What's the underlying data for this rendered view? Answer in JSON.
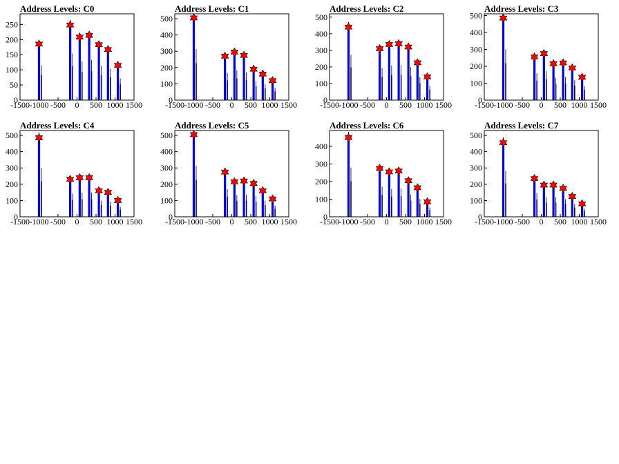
{
  "chart_data": [
    {
      "type": "histogram",
      "title": "Address Levels: C0",
      "xlim": [
        -1500,
        1500
      ],
      "ylim": [
        0,
        285
      ],
      "xticks": [
        -1500,
        -1000,
        -500,
        0,
        500,
        1000,
        1500
      ],
      "yticks": [
        0,
        50,
        100,
        150,
        200,
        250
      ],
      "x_tick_labels": [
        "-1500",
        "-1000",
        "-500",
        "0",
        "500",
        "1000",
        "1500"
      ],
      "y_tick_labels": [
        "0",
        "50",
        "100",
        "150",
        "200",
        "250"
      ],
      "peaks": [
        {
          "x": -1000,
          "y": 185
        },
        {
          "x": -180,
          "y": 248
        },
        {
          "x": 70,
          "y": 208
        },
        {
          "x": 320,
          "y": 214
        },
        {
          "x": 575,
          "y": 183
        },
        {
          "x": 815,
          "y": 167
        },
        {
          "x": 1075,
          "y": 115
        }
      ]
    },
    {
      "type": "histogram",
      "title": "Address Levels: C1",
      "xlim": [
        -1500,
        1500
      ],
      "ylim": [
        0,
        530
      ],
      "xticks": [
        -1500,
        -1000,
        -500,
        0,
        500,
        1000,
        1500
      ],
      "yticks": [
        0,
        100,
        200,
        300,
        400,
        500
      ],
      "x_tick_labels": [
        "-1500",
        "-1000",
        "-500",
        "0",
        "500",
        "1000",
        "1500"
      ],
      "y_tick_labels": [
        "0",
        "100",
        "200",
        "300",
        "400",
        "500"
      ],
      "peaks": [
        {
          "x": -1000,
          "y": 505
        },
        {
          "x": -180,
          "y": 270
        },
        {
          "x": 70,
          "y": 295
        },
        {
          "x": 320,
          "y": 275
        },
        {
          "x": 575,
          "y": 190
        },
        {
          "x": 815,
          "y": 160
        },
        {
          "x": 1075,
          "y": 120
        }
      ]
    },
    {
      "type": "histogram",
      "title": "Address Levels: C2",
      "xlim": [
        -1500,
        1500
      ],
      "ylim": [
        0,
        520
      ],
      "xticks": [
        -1500,
        -1000,
        -500,
        0,
        500,
        1000,
        1500
      ],
      "yticks": [
        0,
        100,
        200,
        300,
        400,
        500
      ],
      "x_tick_labels": [
        "-1500",
        "-1000",
        "-500",
        "0",
        "500",
        "1000",
        "1500"
      ],
      "y_tick_labels": [
        "0",
        "100",
        "200",
        "300",
        "400",
        "500"
      ],
      "peaks": [
        {
          "x": -1000,
          "y": 440
        },
        {
          "x": -180,
          "y": 310
        },
        {
          "x": 70,
          "y": 335
        },
        {
          "x": 320,
          "y": 340
        },
        {
          "x": 575,
          "y": 320
        },
        {
          "x": 815,
          "y": 225
        },
        {
          "x": 1075,
          "y": 140
        }
      ]
    },
    {
      "type": "histogram",
      "title": "Address Levels: C3",
      "xlim": [
        -1500,
        1500
      ],
      "ylim": [
        0,
        510
      ],
      "xticks": [
        -1500,
        -1000,
        -500,
        0,
        500,
        1000,
        1500
      ],
      "yticks": [
        0,
        100,
        200,
        300,
        400,
        500
      ],
      "x_tick_labels": [
        "-1500",
        "-1000",
        "-500",
        "0",
        "500",
        "1000",
        "1500"
      ],
      "y_tick_labels": [
        "0",
        "100",
        "200",
        "300",
        "400",
        "500"
      ],
      "peaks": [
        {
          "x": -1000,
          "y": 485
        },
        {
          "x": -180,
          "y": 255
        },
        {
          "x": 70,
          "y": 275
        },
        {
          "x": 320,
          "y": 215
        },
        {
          "x": 575,
          "y": 220
        },
        {
          "x": 815,
          "y": 190
        },
        {
          "x": 1075,
          "y": 135
        }
      ]
    },
    {
      "type": "histogram",
      "title": "Address Levels: C4",
      "xlim": [
        -1500,
        1500
      ],
      "ylim": [
        0,
        530
      ],
      "xticks": [
        -1500,
        -1000,
        -500,
        0,
        500,
        1000,
        1500
      ],
      "yticks": [
        0,
        100,
        200,
        300,
        400,
        500
      ],
      "x_tick_labels": [
        "-1500",
        "-1000",
        "-500",
        "0",
        "500",
        "1000",
        "1500"
      ],
      "y_tick_labels": [
        "0",
        "100",
        "200",
        "300",
        "400",
        "500"
      ],
      "peaks": [
        {
          "x": -1000,
          "y": 485
        },
        {
          "x": -180,
          "y": 230
        },
        {
          "x": 70,
          "y": 240
        },
        {
          "x": 320,
          "y": 240
        },
        {
          "x": 575,
          "y": 160
        },
        {
          "x": 815,
          "y": 150
        },
        {
          "x": 1075,
          "y": 100
        }
      ]
    },
    {
      "type": "histogram",
      "title": "Address Levels: C5",
      "xlim": [
        -1500,
        1500
      ],
      "ylim": [
        0,
        530
      ],
      "xticks": [
        -1500,
        -1000,
        -500,
        0,
        500,
        1000,
        1500
      ],
      "yticks": [
        0,
        100,
        200,
        300,
        400,
        500
      ],
      "x_tick_labels": [
        "-1500",
        "-1000",
        "-500",
        "0",
        "500",
        "1000",
        "1500"
      ],
      "y_tick_labels": [
        "0",
        "100",
        "200",
        "300",
        "400",
        "500"
      ],
      "peaks": [
        {
          "x": -1000,
          "y": 505
        },
        {
          "x": -180,
          "y": 275
        },
        {
          "x": 70,
          "y": 215
        },
        {
          "x": 320,
          "y": 220
        },
        {
          "x": 575,
          "y": 205
        },
        {
          "x": 815,
          "y": 160
        },
        {
          "x": 1075,
          "y": 110
        }
      ]
    },
    {
      "type": "histogram",
      "title": "Address Levels: C6",
      "xlim": [
        -1500,
        1500
      ],
      "ylim": [
        0,
        490
      ],
      "xticks": [
        -1500,
        -1000,
        -500,
        0,
        500,
        1000,
        1500
      ],
      "yticks": [
        0,
        100,
        200,
        300,
        400
      ],
      "x_tick_labels": [
        "-1500",
        "-1000",
        "-500",
        "0",
        "500",
        "1000",
        "1500"
      ],
      "y_tick_labels": [
        "0",
        "100",
        "200",
        "300",
        "400"
      ],
      "peaks": [
        {
          "x": -1000,
          "y": 450
        },
        {
          "x": -180,
          "y": 275
        },
        {
          "x": 70,
          "y": 255
        },
        {
          "x": 320,
          "y": 260
        },
        {
          "x": 575,
          "y": 205
        },
        {
          "x": 815,
          "y": 165
        },
        {
          "x": 1075,
          "y": 85
        }
      ]
    },
    {
      "type": "histogram",
      "title": "Address Levels: C7",
      "xlim": [
        -1500,
        1500
      ],
      "ylim": [
        0,
        530
      ],
      "xticks": [
        -1500,
        -1000,
        -500,
        0,
        500,
        1000,
        1500
      ],
      "yticks": [
        0,
        100,
        200,
        300,
        400,
        500
      ],
      "x_tick_labels": [
        "-1500",
        "-1000",
        "-500",
        "0",
        "500",
        "1000",
        "1500"
      ],
      "y_tick_labels": [
        "0",
        "100",
        "200",
        "300",
        "400",
        "500"
      ],
      "peaks": [
        {
          "x": -1000,
          "y": 455
        },
        {
          "x": -180,
          "y": 235
        },
        {
          "x": 70,
          "y": 195
        },
        {
          "x": 320,
          "y": 195
        },
        {
          "x": 575,
          "y": 175
        },
        {
          "x": 815,
          "y": 125
        },
        {
          "x": 1075,
          "y": 80
        }
      ]
    }
  ],
  "colors": {
    "histogram": "#0000ff",
    "histogram_outline": "#000000",
    "marker": "#ff0000",
    "frame": "#000000"
  },
  "marker_icon": "star-marker-icon"
}
